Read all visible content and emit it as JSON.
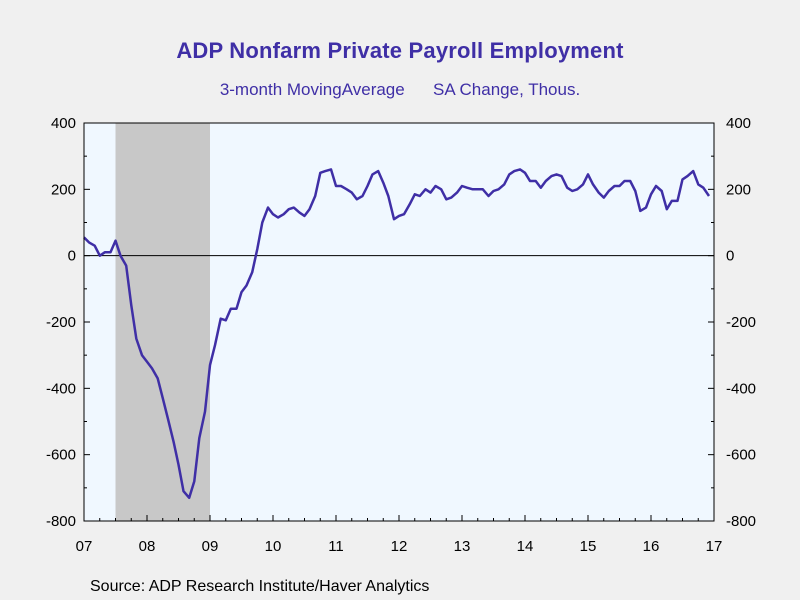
{
  "chart_data": {
    "type": "line",
    "title": "ADP Nonfarm Private Payroll Employment",
    "subtitle": "3-month MovingAverage      SA Change, Thous.",
    "source": "Source:  ADP Research Institute/Haver Analytics",
    "xlabel": "",
    "ylabel": "",
    "ylim": [
      -800,
      400
    ],
    "yticks": [
      400,
      200,
      0,
      -200,
      -400,
      -600,
      -800
    ],
    "xlim": [
      2007.0,
      2017.0
    ],
    "xtick_values": [
      2007,
      2008,
      2009,
      2010,
      2011,
      2012,
      2013,
      2014,
      2015,
      2016,
      2017
    ],
    "xtick_labels": [
      "07",
      "08",
      "09",
      "10",
      "11",
      "12",
      "13",
      "14",
      "15",
      "16",
      "17"
    ],
    "recession": {
      "start": 2007.5,
      "end": 2009.0
    },
    "colors": {
      "line": "#3f2fa6",
      "plot_bg": "#f0f8ff",
      "recession": "#c8c8c8",
      "title": "#3f2fa6"
    },
    "grid": false,
    "series": [
      {
        "values": [
          [
            2007.0,
            55
          ],
          [
            2007.08,
            40
          ],
          [
            2007.17,
            30
          ],
          [
            2007.25,
            0
          ],
          [
            2007.33,
            10
          ],
          [
            2007.42,
            10
          ],
          [
            2007.5,
            45
          ],
          [
            2007.58,
            0
          ],
          [
            2007.67,
            -30
          ],
          [
            2007.75,
            -150
          ],
          [
            2007.83,
            -250
          ],
          [
            2007.92,
            -300
          ],
          [
            2008.0,
            -320
          ],
          [
            2008.08,
            -340
          ],
          [
            2008.17,
            -370
          ],
          [
            2008.25,
            -430
          ],
          [
            2008.33,
            -490
          ],
          [
            2008.42,
            -560
          ],
          [
            2008.5,
            -630
          ],
          [
            2008.58,
            -710
          ],
          [
            2008.67,
            -730
          ],
          [
            2008.75,
            -680
          ],
          [
            2008.83,
            -550
          ],
          [
            2008.92,
            -470
          ],
          [
            2009.0,
            -330
          ],
          [
            2009.08,
            -270
          ],
          [
            2009.17,
            -190
          ],
          [
            2009.25,
            -195
          ],
          [
            2009.33,
            -160
          ],
          [
            2009.42,
            -160
          ],
          [
            2009.5,
            -110
          ],
          [
            2009.58,
            -90
          ],
          [
            2009.67,
            -50
          ],
          [
            2009.75,
            20
          ],
          [
            2009.83,
            100
          ],
          [
            2009.92,
            145
          ],
          [
            2010.0,
            125
          ],
          [
            2010.08,
            115
          ],
          [
            2010.17,
            125
          ],
          [
            2010.25,
            140
          ],
          [
            2010.33,
            145
          ],
          [
            2010.42,
            130
          ],
          [
            2010.5,
            120
          ],
          [
            2010.58,
            140
          ],
          [
            2010.67,
            180
          ],
          [
            2010.75,
            250
          ],
          [
            2010.83,
            255
          ],
          [
            2010.92,
            260
          ],
          [
            2011.0,
            210
          ],
          [
            2011.08,
            210
          ],
          [
            2011.17,
            200
          ],
          [
            2011.25,
            190
          ],
          [
            2011.33,
            170
          ],
          [
            2011.42,
            180
          ],
          [
            2011.5,
            210
          ],
          [
            2011.58,
            245
          ],
          [
            2011.67,
            255
          ],
          [
            2011.75,
            220
          ],
          [
            2011.83,
            180
          ],
          [
            2011.92,
            110
          ],
          [
            2012.0,
            120
          ],
          [
            2012.08,
            125
          ],
          [
            2012.17,
            155
          ],
          [
            2012.25,
            185
          ],
          [
            2012.33,
            180
          ],
          [
            2012.42,
            200
          ],
          [
            2012.5,
            190
          ],
          [
            2012.58,
            210
          ],
          [
            2012.67,
            200
          ],
          [
            2012.75,
            170
          ],
          [
            2012.83,
            175
          ],
          [
            2012.92,
            190
          ],
          [
            2013.0,
            210
          ],
          [
            2013.08,
            205
          ],
          [
            2013.17,
            200
          ],
          [
            2013.25,
            200
          ],
          [
            2013.33,
            200
          ],
          [
            2013.42,
            180
          ],
          [
            2013.5,
            195
          ],
          [
            2013.58,
            200
          ],
          [
            2013.67,
            215
          ],
          [
            2013.75,
            245
          ],
          [
            2013.83,
            255
          ],
          [
            2013.92,
            260
          ],
          [
            2014.0,
            250
          ],
          [
            2014.08,
            225
          ],
          [
            2014.17,
            225
          ],
          [
            2014.25,
            205
          ],
          [
            2014.33,
            225
          ],
          [
            2014.42,
            240
          ],
          [
            2014.5,
            245
          ],
          [
            2014.58,
            240
          ],
          [
            2014.67,
            205
          ],
          [
            2014.75,
            195
          ],
          [
            2014.83,
            200
          ],
          [
            2014.92,
            215
          ],
          [
            2015.0,
            245
          ],
          [
            2015.08,
            215
          ],
          [
            2015.17,
            190
          ],
          [
            2015.25,
            175
          ],
          [
            2015.33,
            195
          ],
          [
            2015.42,
            210
          ],
          [
            2015.5,
            210
          ],
          [
            2015.58,
            225
          ],
          [
            2015.67,
            225
          ],
          [
            2015.75,
            195
          ],
          [
            2015.83,
            135
          ],
          [
            2015.92,
            145
          ],
          [
            2016.0,
            185
          ],
          [
            2016.08,
            210
          ],
          [
            2016.17,
            195
          ],
          [
            2016.25,
            140
          ],
          [
            2016.33,
            165
          ],
          [
            2016.42,
            165
          ],
          [
            2016.5,
            230
          ],
          [
            2016.58,
            240
          ],
          [
            2016.67,
            255
          ],
          [
            2016.75,
            215
          ],
          [
            2016.83,
            205
          ],
          [
            2016.92,
            180
          ]
        ]
      }
    ]
  }
}
